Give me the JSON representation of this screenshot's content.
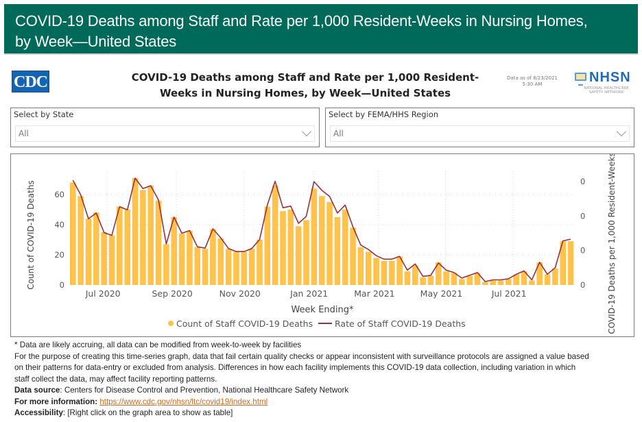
{
  "banner": {
    "title_line1": "COVID-19 Deaths among Staff and Rate per 1,000 Resident-Weeks in Nursing Homes,",
    "title_line2": "by Week—United States"
  },
  "header": {
    "cdc_logo": "CDC",
    "title_line1": "COVID-19 Deaths among Staff and Rate per 1,000 Resident-",
    "title_line2": "Weeks in Nursing Homes, by Week—United States",
    "data_as_of_line1": "Data as of 8/23/2021",
    "data_as_of_line2": "5:30 AM",
    "nhsn_word": "NHSN",
    "nhsn_sub_line1": "NATIONAL HEALTHCARE",
    "nhsn_sub_line2": "SAFETY NETWORK"
  },
  "filters": {
    "state": {
      "label": "Select by State",
      "value": "All"
    },
    "region": {
      "label": "Select by FEMA/HHS Region",
      "value": "All"
    }
  },
  "colors": {
    "banner": "#006a5a",
    "bar": "#ffc34d",
    "line": "#9b2f3b",
    "link": "#d2691e"
  },
  "chart_data": {
    "type": "bar",
    "combo": "bar+line",
    "title": "COVID-19 Deaths among Staff and Rate per 1,000 Resident-Weeks in Nursing Homes, by Week—United States",
    "xlabel": "Week Ending*",
    "ylabel": "Count of COVID-19 Deaths",
    "y2label": "COVID-19 Deaths per 1,000 Resident-Weeks",
    "x_ticks": [
      {
        "label": "Jul 2020",
        "week_index": 4.4
      },
      {
        "label": "Sep 2020",
        "week_index": 13.3
      },
      {
        "label": "Nov 2020",
        "week_index": 22.0
      },
      {
        "label": "Jan 2021",
        "week_index": 30.9
      },
      {
        "label": "Mar 2021",
        "week_index": 39.3
      },
      {
        "label": "May 2021",
        "week_index": 47.9
      },
      {
        "label": "Jul 2021",
        "week_index": 56.6
      }
    ],
    "ylim": [
      0,
      70
    ],
    "y_ticks": [
      0,
      20,
      40,
      60
    ],
    "y2lim": [
      0,
      0.35
    ],
    "y2_ticks": [
      {
        "value": 0,
        "label": "0"
      },
      {
        "value": 0.1,
        "label": "0"
      },
      {
        "value": 0.2,
        "label": "0"
      },
      {
        "value": 0.3,
        "label": "0"
      }
    ],
    "grid": true,
    "legend_position": "bottom",
    "series": [
      {
        "name": "Count of Staff COVID-19 Deaths",
        "type": "bar",
        "axis": "left",
        "values": [
          68,
          59,
          44,
          48,
          35,
          33,
          52,
          50,
          71,
          63,
          66,
          56,
          27,
          45,
          34,
          36,
          25,
          24,
          37,
          31,
          24,
          22,
          22,
          24,
          30,
          52,
          66,
          49,
          50,
          39,
          43,
          64,
          59,
          55,
          45,
          50,
          38,
          25,
          22,
          18,
          16,
          16,
          19,
          9,
          13,
          5,
          6,
          15,
          9,
          8,
          4,
          6,
          8,
          2,
          3,
          3,
          4,
          7,
          9,
          3,
          15,
          7,
          11,
          29,
          29
        ]
      },
      {
        "name": "Rate of Staff COVID-19 Deaths",
        "type": "line",
        "axis": "right",
        "values": [
          0.304,
          0.262,
          0.192,
          0.209,
          0.152,
          0.144,
          0.227,
          0.218,
          0.31,
          0.28,
          0.288,
          0.247,
          0.119,
          0.197,
          0.15,
          0.158,
          0.111,
          0.107,
          0.163,
          0.137,
          0.106,
          0.097,
          0.097,
          0.106,
          0.132,
          0.232,
          0.301,
          0.224,
          0.229,
          0.179,
          0.199,
          0.3,
          0.275,
          0.257,
          0.209,
          0.232,
          0.169,
          0.116,
          0.103,
          0.085,
          0.075,
          0.075,
          0.083,
          0.043,
          0.061,
          0.025,
          0.028,
          0.064,
          0.043,
          0.036,
          0.02,
          0.028,
          0.036,
          0.01,
          0.015,
          0.015,
          0.018,
          0.031,
          0.041,
          0.015,
          0.066,
          0.031,
          0.05,
          0.128,
          0.133
        ]
      }
    ]
  },
  "footer": {
    "note": "* Data are likely accruing, all data can be modified from week-to-week by facilities",
    "para_line1": "For the purpose of creating this time-series graph, data that fail certain quality checks or appear inconsistent with surveillance protocols are assigned a value based",
    "para_line2": "on their patterns for data-entry or excluded from analysis. Differences in how each facility implements this COVID-19 data collection, including variation in which",
    "para_line3": "staff collect the data, may affect facility reporting patterns.",
    "source_label": "Data source",
    "source_text": ": Centers for Disease Control and Prevention, National Healthcare Safety Network",
    "info_label": "For more information",
    "info_sep": ": ",
    "info_link": "https://www.cdc.gov/nhsn/ltc/covid19/index.html",
    "access_label": "Accessibility",
    "access_text": ": [Right click on the graph area to show as table]"
  }
}
